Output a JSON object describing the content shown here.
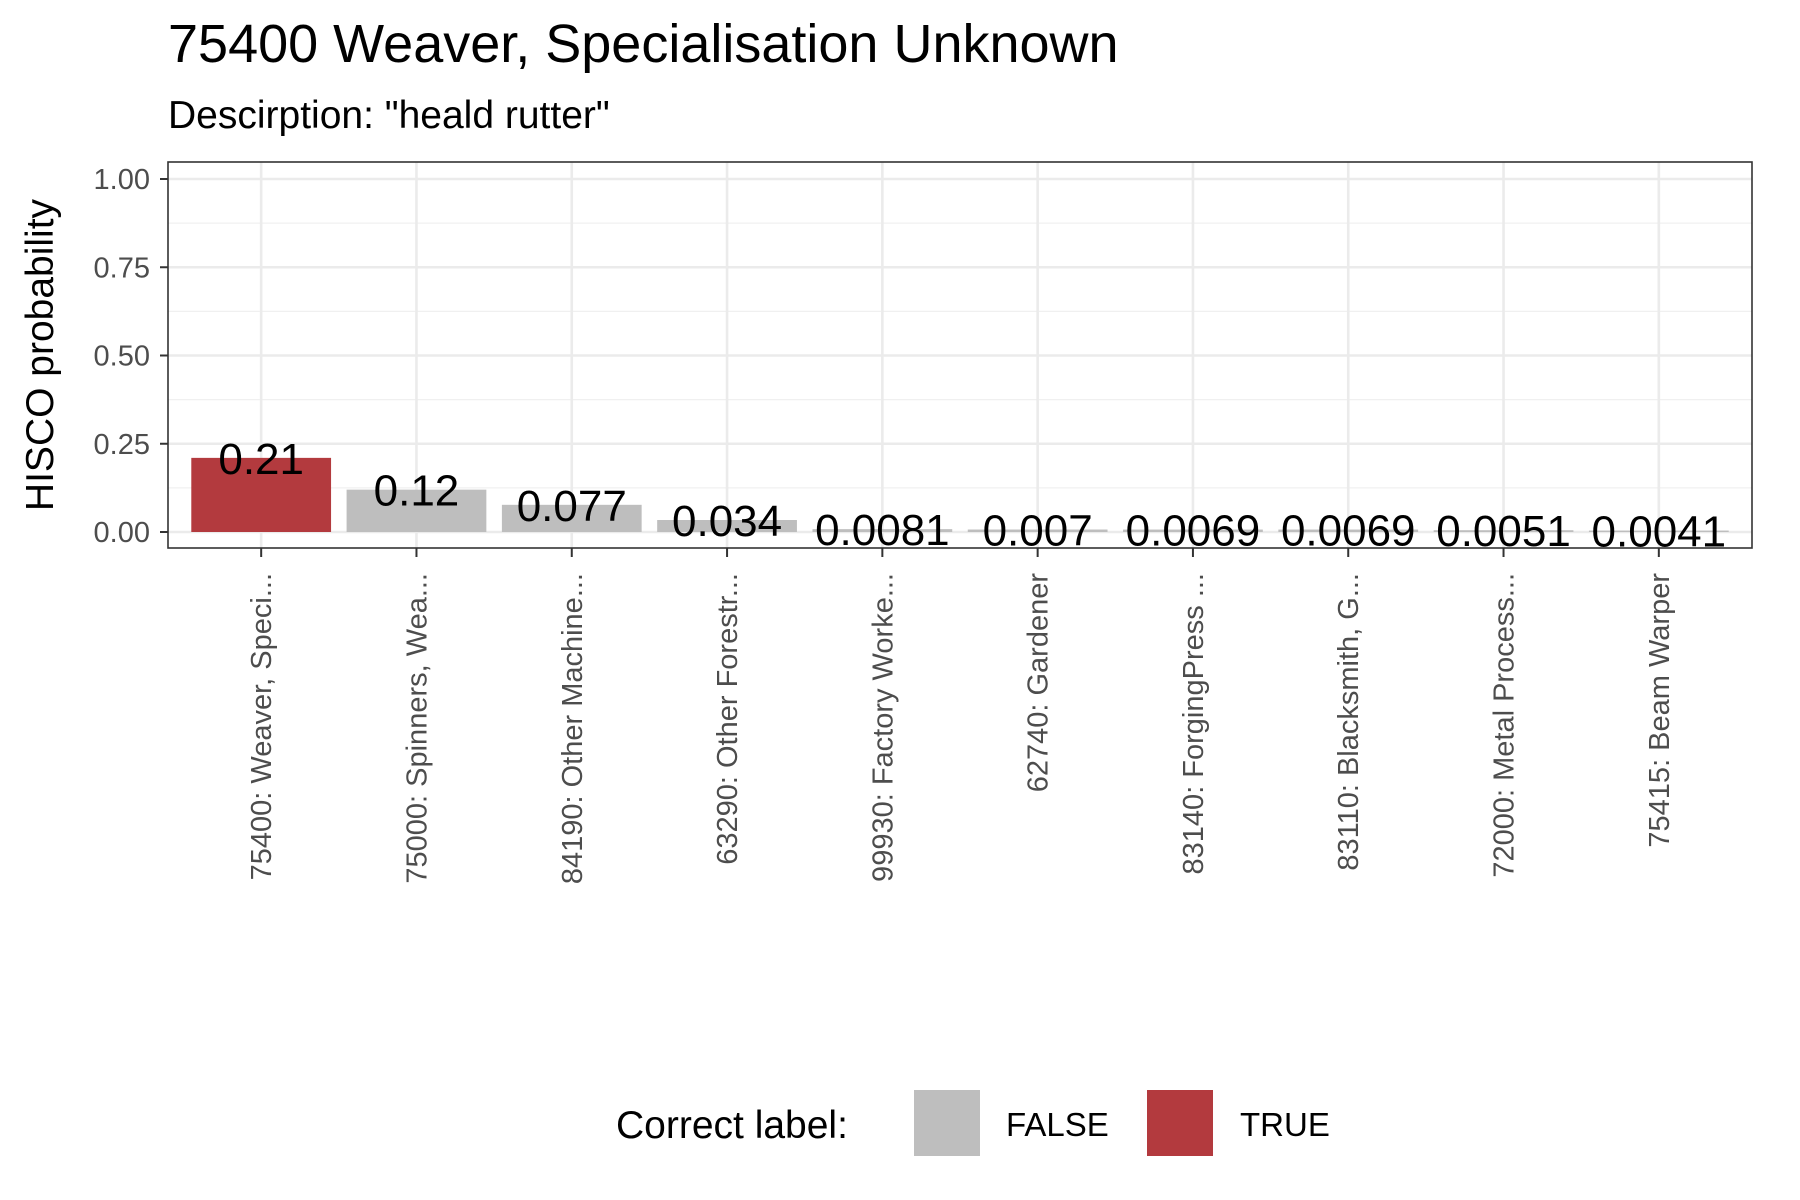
{
  "chart_data": {
    "type": "bar",
    "title": "75400 Weaver, Specialisation Unknown",
    "subtitle": "Descirption: \"heald rutter\"",
    "xlabel": "",
    "ylabel": "HISCO probability",
    "ylim": [
      0,
      1
    ],
    "y_ticks": [
      "0.00",
      "0.25",
      "0.50",
      "0.75",
      "1.00"
    ],
    "grid": true,
    "categories": [
      "75400: Weaver, Speci...",
      "75000: Spinners, Wea...",
      "84190: Other Machine...",
      "63290: Other Forestr...",
      "99930: Factory Worke...",
      "62740: Gardener",
      "83140: ForgingPress ...",
      "83110: Blacksmith, G...",
      "72000: Metal Process...",
      "75415: Beam Warper"
    ],
    "values": [
      0.21,
      0.12,
      0.077,
      0.034,
      0.0081,
      0.007,
      0.0069,
      0.0069,
      0.0051,
      0.0041
    ],
    "value_labels": [
      "0.21",
      "0.12",
      "0.077",
      "0.034",
      "0.0081",
      "0.007",
      "0.0069",
      "0.0069",
      "0.0051",
      "0.0041"
    ],
    "correct": [
      true,
      false,
      false,
      false,
      false,
      false,
      false,
      false,
      false,
      false
    ],
    "legend": {
      "title": "Correct label:",
      "position": "bottom",
      "items": [
        {
          "label": "FALSE",
          "color": "#bebebe"
        },
        {
          "label": "TRUE",
          "color": "#b33a3e"
        }
      ]
    }
  }
}
